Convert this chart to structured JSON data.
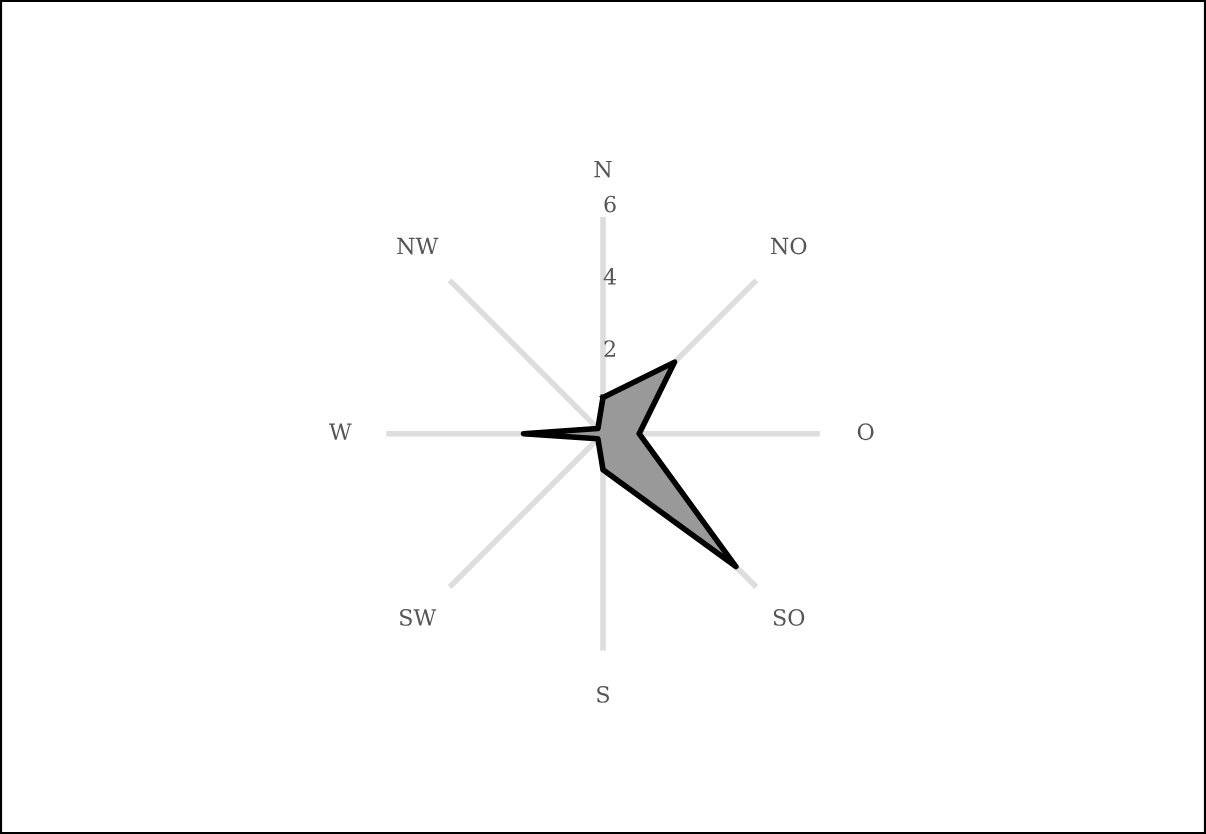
{
  "chart_data": {
    "type": "radar",
    "categories": [
      "N",
      "NO",
      "O",
      "SO",
      "S",
      "SW",
      "W",
      "NW"
    ],
    "series": [
      {
        "color": "#999999",
        "values": [
          1.0,
          2.8,
          1.0,
          5.2,
          1.0,
          0.2,
          2.2,
          0.2
        ]
      }
    ],
    "ylim": [
      0,
      6
    ],
    "yticks": [
      2,
      4,
      6
    ],
    "grid": "x"
  }
}
